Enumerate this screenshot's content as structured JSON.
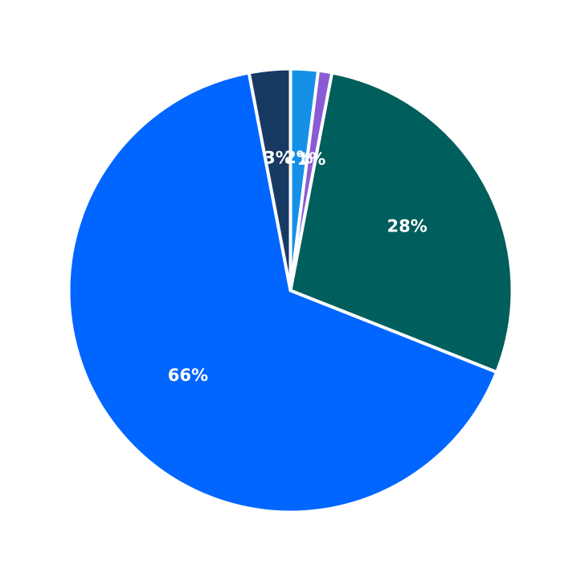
{
  "chart_data": {
    "type": "pie",
    "start_angle_deg": 90,
    "direction": "clockwise",
    "slice_outline_color": "#ffffff",
    "slices": [
      {
        "value": 2,
        "label": "2%",
        "color": "#1590e8"
      },
      {
        "value": 1,
        "label": "1%",
        "color": "#8a5bd6"
      },
      {
        "value": 28,
        "label": "28%",
        "color": "#005e5c"
      },
      {
        "value": 66,
        "label": "66%",
        "color": "#0066ff"
      },
      {
        "value": 3,
        "label": "3%",
        "color": "#173a63"
      }
    ]
  }
}
